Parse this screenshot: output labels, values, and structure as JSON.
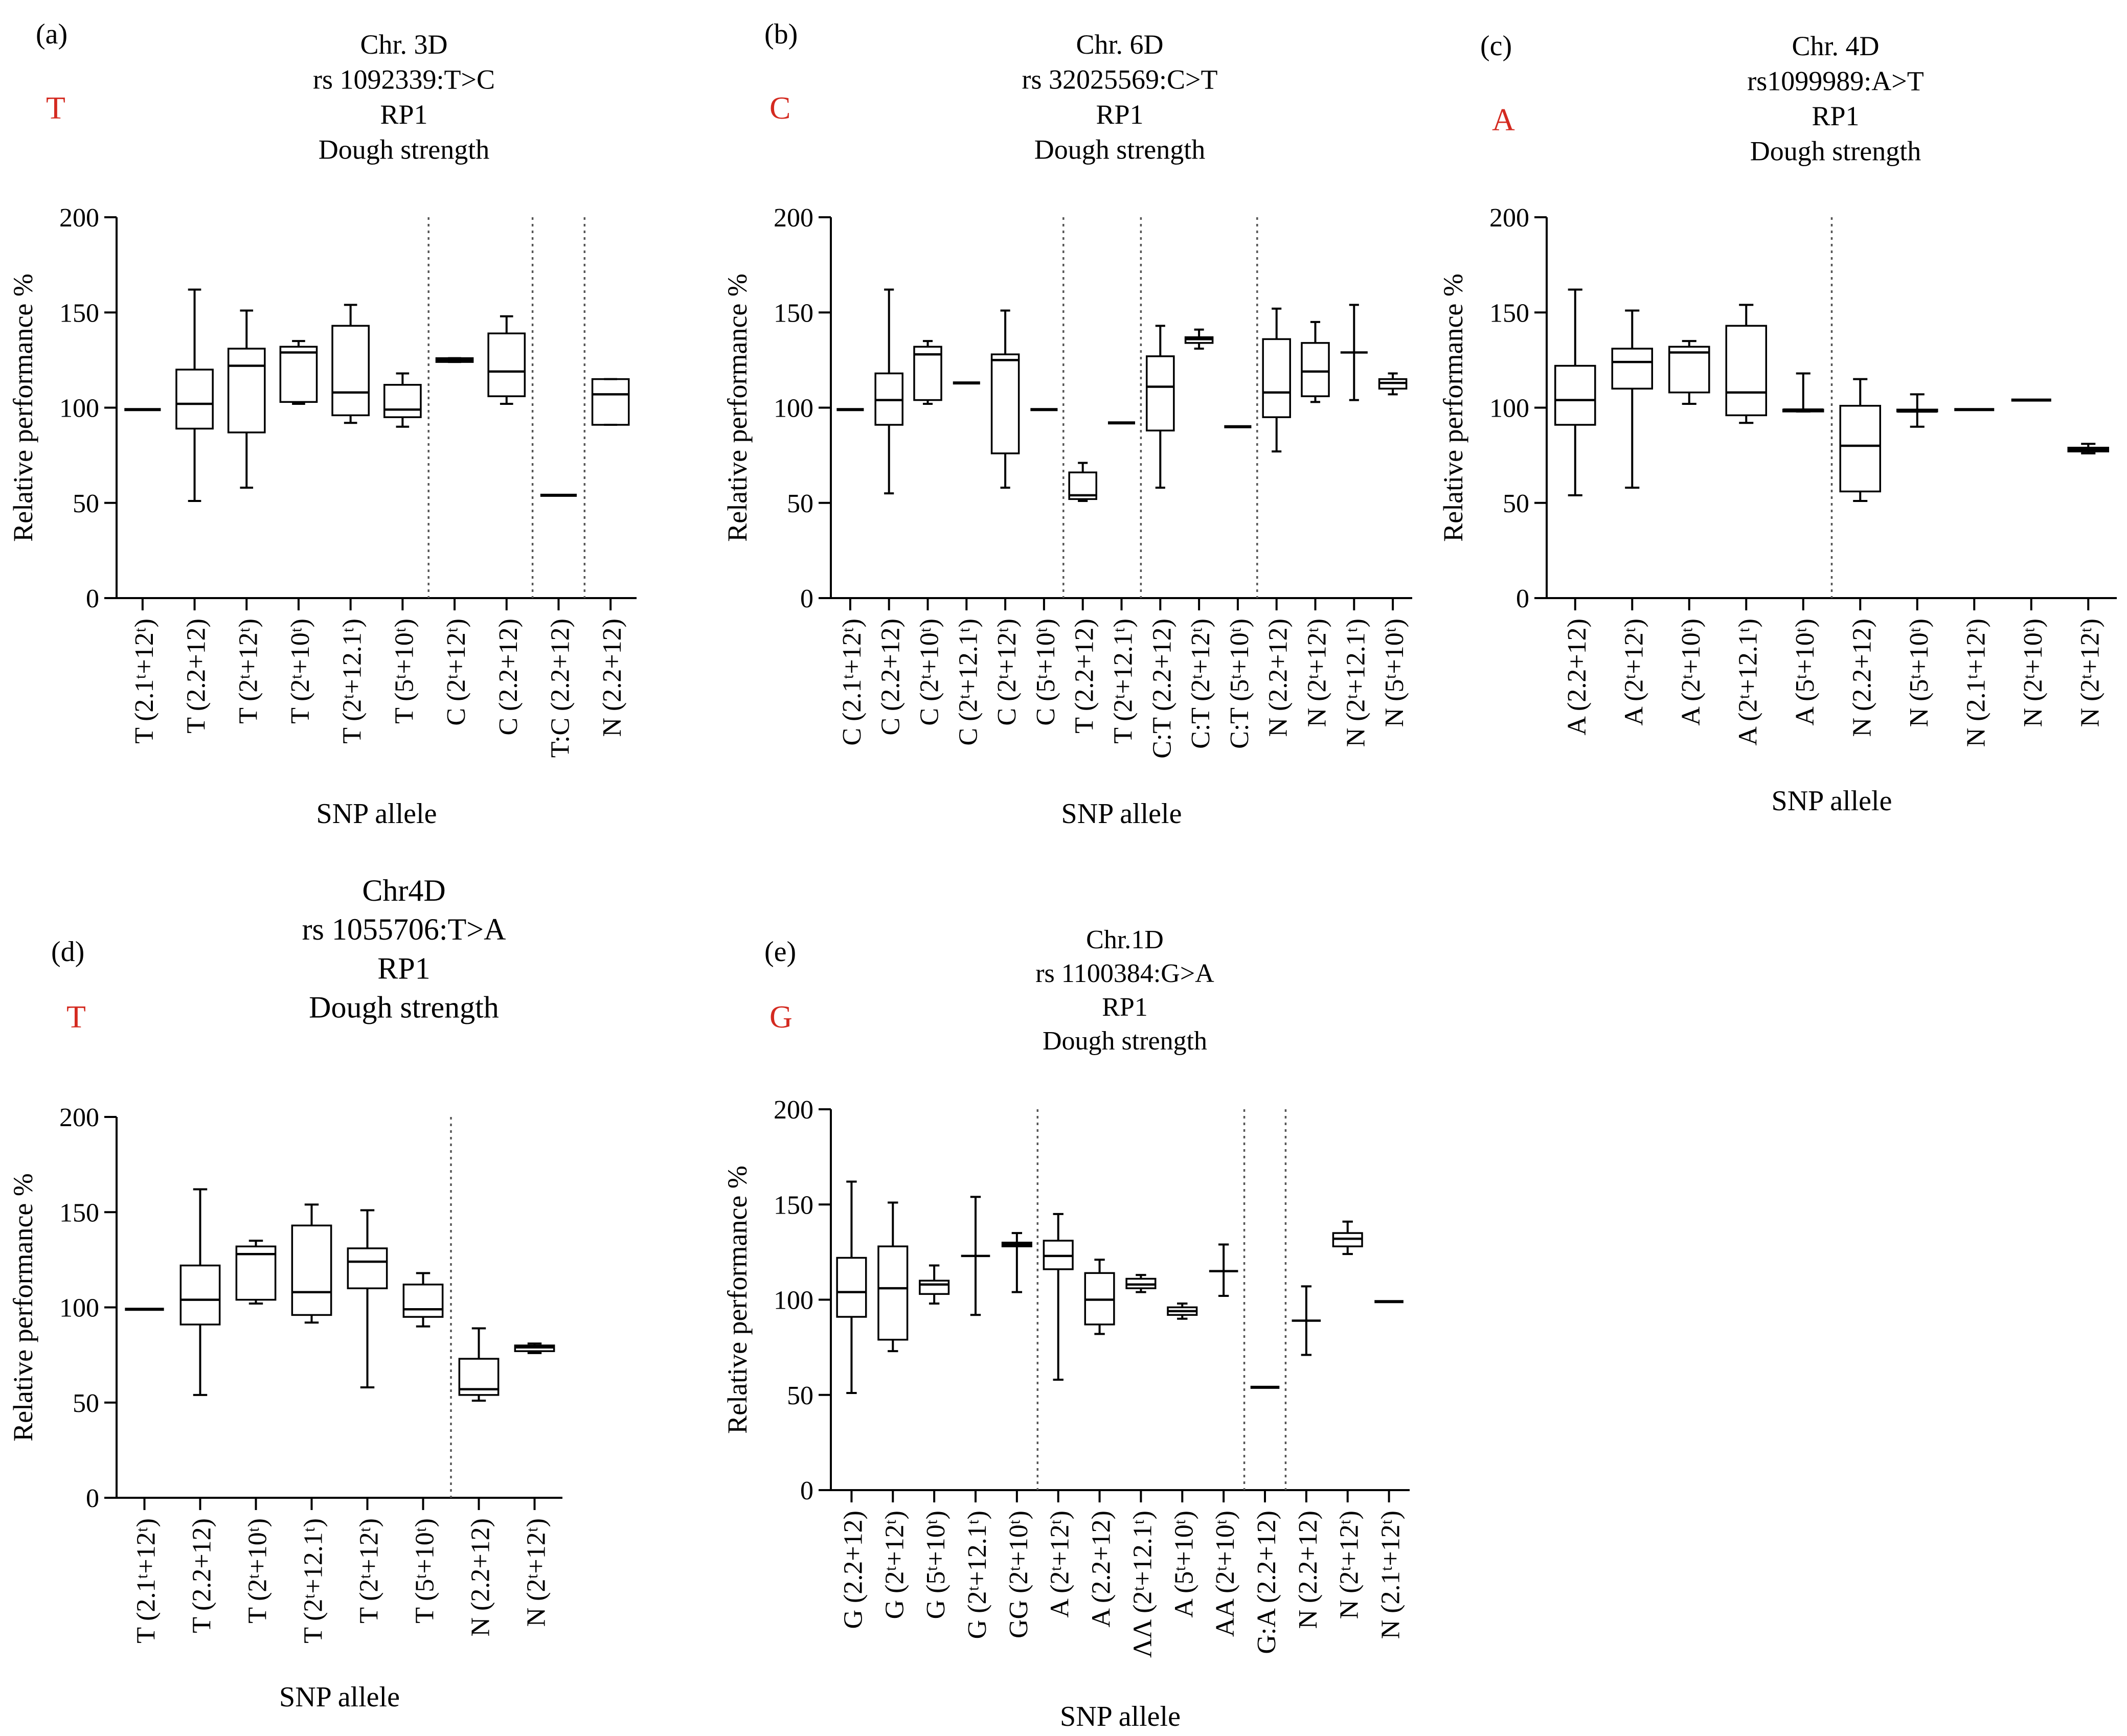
{
  "figure": {
    "background": "#ffffff",
    "accent": "#d42a20"
  },
  "chart_data": [
    {
      "type": "box",
      "panel_label": "(a)",
      "allele_letter": "T",
      "title_lines": [
        "Chr. 3D",
        "rs 1092339:T>C",
        "RP1",
        "Dough strength"
      ],
      "xlabel": "SNP allele",
      "ylabel": "Relative  performance %",
      "ylim": [
        0,
        200
      ],
      "yticks": [
        0,
        50,
        100,
        150,
        200
      ],
      "separators_after": [
        5,
        7,
        8
      ],
      "categories": [
        {
          "label": "T (2.1ᵗ+12ᵗ)",
          "min": 99,
          "q1": 99,
          "median": 99,
          "q3": 99,
          "max": 99
        },
        {
          "label": "T (2.2+12)",
          "min": 51,
          "q1": 89,
          "median": 102,
          "q3": 120,
          "max": 162
        },
        {
          "label": "T (2ᵗ+12ᵗ)",
          "min": 58,
          "q1": 87,
          "median": 122,
          "q3": 131,
          "max": 151
        },
        {
          "label": "T (2ᵗ+10ᵗ)",
          "min": 102,
          "q1": 103,
          "median": 129,
          "q3": 132,
          "max": 135
        },
        {
          "label": "T (2ᵗ+12.1ᵗ)",
          "min": 92,
          "q1": 96,
          "median": 108,
          "q3": 143,
          "max": 154
        },
        {
          "label": "T (5ᵗ+10ᵗ)",
          "min": 90,
          "q1": 95,
          "median": 99,
          "q3": 112,
          "max": 118
        },
        {
          "label": "C (2ᵗ+12ᵗ)",
          "min": 124,
          "q1": 124,
          "median": 125,
          "q3": 126,
          "max": 126
        },
        {
          "label": "C (2.2+12)",
          "min": 102,
          "q1": 106,
          "median": 119,
          "q3": 139,
          "max": 148
        },
        {
          "label": "T:C (2.2+12)",
          "min": 54,
          "q1": 54,
          "median": 54,
          "q3": 54,
          "max": 54
        },
        {
          "label": "N (2.2+12)",
          "min": 91,
          "q1": 91,
          "median": 107,
          "q3": 115,
          "max": 115
        }
      ]
    },
    {
      "type": "box",
      "panel_label": "(b)",
      "allele_letter": "C",
      "title_lines": [
        "Chr. 6D",
        "rs 32025569:C>T",
        "RP1",
        "Dough strength"
      ],
      "xlabel": "SNP allele",
      "ylabel": "Relative performance %",
      "ylim": [
        0,
        200
      ],
      "yticks": [
        0,
        50,
        100,
        150,
        200
      ],
      "separators_after": [
        5,
        7,
        10
      ],
      "categories": [
        {
          "label": "C (2.1ᵗ+12ᵗ)",
          "min": 99,
          "q1": 99,
          "median": 99,
          "q3": 99,
          "max": 99
        },
        {
          "label": "C (2.2+12)",
          "min": 55,
          "q1": 91,
          "median": 104,
          "q3": 118,
          "max": 162
        },
        {
          "label": "C (2ᵗ+10ᵗ)",
          "min": 102,
          "q1": 104,
          "median": 128,
          "q3": 132,
          "max": 135
        },
        {
          "label": "C (2ᵗ+12.1ᵗ)",
          "min": 113,
          "q1": 113,
          "median": 113,
          "q3": 113,
          "max": 113
        },
        {
          "label": "C (2ᵗ+12ᵗ)",
          "min": 58,
          "q1": 76,
          "median": 125,
          "q3": 128,
          "max": 151
        },
        {
          "label": "C (5ᵗ+10ᵗ)",
          "min": 99,
          "q1": 99,
          "median": 99,
          "q3": 99,
          "max": 99
        },
        {
          "label": "T (2.2+12)",
          "min": 51,
          "q1": 52,
          "median": 54,
          "q3": 66,
          "max": 71
        },
        {
          "label": "T (2ᵗ+12.1ᵗ)",
          "min": 92,
          "q1": 92,
          "median": 92,
          "q3": 92,
          "max": 92
        },
        {
          "label": "C:T (2.2+12)",
          "min": 58,
          "q1": 88,
          "median": 111,
          "q3": 127,
          "max": 143
        },
        {
          "label": "C:T (2ᵗ+12ᵗ)",
          "min": 131,
          "q1": 134,
          "median": 136,
          "q3": 137,
          "max": 141
        },
        {
          "label": "C:T (5ᵗ+10ᵗ)",
          "min": 90,
          "q1": 90,
          "median": 90,
          "q3": 90,
          "max": 90
        },
        {
          "label": "N (2.2+12)",
          "min": 77,
          "q1": 95,
          "median": 108,
          "q3": 136,
          "max": 152
        },
        {
          "label": "N (2ᵗ+12ᵗ)",
          "min": 103,
          "q1": 106,
          "median": 119,
          "q3": 134,
          "max": 145
        },
        {
          "label": "N (2ᵗ+12.1ᵗ)",
          "min": 104,
          "q1": 129,
          "median": 129,
          "q3": 129,
          "max": 154
        },
        {
          "label": "N (5ᵗ+10ᵗ)",
          "min": 107,
          "q1": 110,
          "median": 113,
          "q3": 115,
          "max": 118
        }
      ]
    },
    {
      "type": "box",
      "panel_label": "(c)",
      "allele_letter": "A",
      "title_lines": [
        "Chr. 4D",
        "rs1099989:A>T",
        "RP1",
        "Dough strength"
      ],
      "xlabel": "SNP allele",
      "ylabel": "Relative  performance %",
      "ylim": [
        0,
        200
      ],
      "yticks": [
        0,
        50,
        100,
        150,
        200
      ],
      "separators_after": [
        4
      ],
      "categories": [
        {
          "label": "A (2.2+12)",
          "min": 54,
          "q1": 91,
          "median": 104,
          "q3": 122,
          "max": 162
        },
        {
          "label": "A (2ᵗ+12ᵗ)",
          "min": 58,
          "q1": 110,
          "median": 124,
          "q3": 131,
          "max": 151
        },
        {
          "label": "A (2ᵗ+10ᵗ)",
          "min": 102,
          "q1": 108,
          "median": 129,
          "q3": 132,
          "max": 135
        },
        {
          "label": "A (2ᵗ+12.1ᵗ)",
          "min": 92,
          "q1": 96,
          "median": 108,
          "q3": 143,
          "max": 154
        },
        {
          "label": "A (5ᵗ+10ᵗ)",
          "min": 98,
          "q1": 98,
          "median": 99,
          "q3": 99,
          "max": 118
        },
        {
          "label": "N (2.2+12)",
          "min": 51,
          "q1": 56,
          "median": 80,
          "q3": 101,
          "max": 115
        },
        {
          "label": "N (5ᵗ+10ᵗ)",
          "min": 90,
          "q1": 98,
          "median": 98,
          "q3": 99,
          "max": 107
        },
        {
          "label": "N (2.1ᵗ+12ᵗ)",
          "min": 99,
          "q1": 99,
          "median": 99,
          "q3": 99,
          "max": 99
        },
        {
          "label": "N (2ᵗ+10ᵗ)",
          "min": 104,
          "q1": 104,
          "median": 104,
          "q3": 104,
          "max": 104
        },
        {
          "label": "N (2ᵗ+12ᵗ)",
          "min": 76,
          "q1": 77,
          "median": 78,
          "q3": 79,
          "max": 81
        }
      ]
    },
    {
      "type": "box",
      "panel_label": "(d)",
      "allele_letter": "T",
      "title_lines": [
        "Chr4D",
        "rs 1055706:T>A",
        "RP1",
        "Dough strength"
      ],
      "xlabel": "SNP allele",
      "ylabel": "Relative performance %",
      "ylim": [
        0,
        200
      ],
      "yticks": [
        0,
        50,
        100,
        150,
        200
      ],
      "separators_after": [
        5
      ],
      "categories": [
        {
          "label": "T (2.1ᵗ+12ᵗ)",
          "min": 99,
          "q1": 99,
          "median": 99,
          "q3": 99,
          "max": 99
        },
        {
          "label": "T (2.2+12)",
          "min": 54,
          "q1": 91,
          "median": 104,
          "q3": 122,
          "max": 162
        },
        {
          "label": "T (2ᵗ+10ᵗ)",
          "min": 102,
          "q1": 104,
          "median": 128,
          "q3": 132,
          "max": 135
        },
        {
          "label": "T (2ᵗ+12.1ᵗ)",
          "min": 92,
          "q1": 96,
          "median": 108,
          "q3": 143,
          "max": 154
        },
        {
          "label": "T (2ᵗ+12ᵗ)",
          "min": 58,
          "q1": 110,
          "median": 124,
          "q3": 131,
          "max": 151
        },
        {
          "label": "T (5ᵗ+10ᵗ)",
          "min": 90,
          "q1": 95,
          "median": 99,
          "q3": 112,
          "max": 118
        },
        {
          "label": "N (2.2+12)",
          "min": 51,
          "q1": 54,
          "median": 57,
          "q3": 73,
          "max": 89
        },
        {
          "label": "N (2ᵗ+12ᵗ)",
          "min": 76,
          "q1": 77,
          "median": 79,
          "q3": 80,
          "max": 81
        }
      ]
    },
    {
      "type": "box",
      "panel_label": "(e)",
      "allele_letter": "G",
      "title_lines": [
        "Chr.1D",
        "rs 1100384:G>A",
        "RP1",
        "Dough strength"
      ],
      "xlabel": "SNP allele",
      "ylabel": "Relative  performance %",
      "ylim": [
        0,
        200
      ],
      "yticks": [
        0,
        50,
        100,
        150,
        200
      ],
      "separators_after": [
        4,
        9,
        10
      ],
      "categories": [
        {
          "label": "G (2.2+12)",
          "min": 51,
          "q1": 91,
          "median": 104,
          "q3": 122,
          "max": 162
        },
        {
          "label": "G (2ᵗ+12ᵗ)",
          "min": 73,
          "q1": 79,
          "median": 106,
          "q3": 128,
          "max": 151
        },
        {
          "label": "G (5ᵗ+10ᵗ)",
          "min": 98,
          "q1": 103,
          "median": 108,
          "q3": 110,
          "max": 118
        },
        {
          "label": "G (2ᵗ+12.1ᵗ)",
          "min": 92,
          "q1": 123,
          "median": 123,
          "q3": 123,
          "max": 154
        },
        {
          "label": "GG (2ᵗ+10ᵗ)",
          "min": 104,
          "q1": 128,
          "median": 129,
          "q3": 130,
          "max": 135
        },
        {
          "label": "A (2ᵗ+12ᵗ)",
          "min": 58,
          "q1": 116,
          "median": 123,
          "q3": 131,
          "max": 145
        },
        {
          "label": "A (2.2+12)",
          "min": 82,
          "q1": 87,
          "median": 100,
          "q3": 114,
          "max": 121
        },
        {
          "label": "ΛΛ (2ᵗ+12.1ᵗ)",
          "min": 104,
          "q1": 106,
          "median": 108,
          "q3": 111,
          "max": 113
        },
        {
          "label": "A (5ᵗ+10ᵗ)",
          "min": 90,
          "q1": 92,
          "median": 94,
          "q3": 96,
          "max": 98
        },
        {
          "label": "AA (2ᵗ+10ᵗ)",
          "min": 102,
          "q1": 115,
          "median": 115,
          "q3": 115,
          "max": 129
        },
        {
          "label": "G:A (2.2+12)",
          "min": 54,
          "q1": 54,
          "median": 54,
          "q3": 54,
          "max": 54
        },
        {
          "label": "N (2.2+12)",
          "min": 71,
          "q1": 89,
          "median": 89,
          "q3": 89,
          "max": 107
        },
        {
          "label": "N (2ᵗ+12ᵗ)",
          "min": 124,
          "q1": 128,
          "median": 132,
          "q3": 135,
          "max": 141
        },
        {
          "label": "N (2.1ᵗ+12ᵗ)",
          "min": 99,
          "q1": 99,
          "median": 99,
          "q3": 99,
          "max": 99
        }
      ]
    }
  ]
}
